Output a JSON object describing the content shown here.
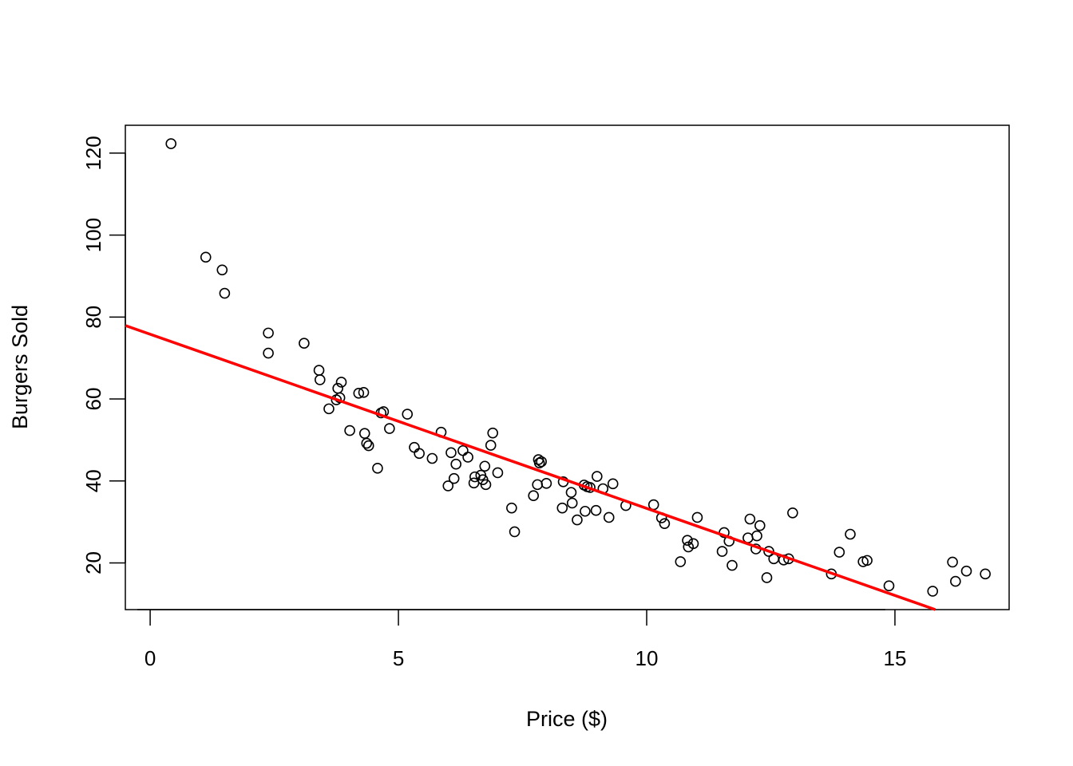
{
  "chart_data": {
    "type": "scatter",
    "title": "",
    "xlabel": "Price ($)",
    "ylabel": "Burgers Sold",
    "xlim": [
      -0.5,
      17.3
    ],
    "ylim": [
      8.6,
      126.8
    ],
    "x_ticks": [
      0,
      5,
      10,
      15
    ],
    "y_ticks": [
      20,
      40,
      60,
      80,
      100,
      120
    ],
    "grid": false,
    "legend": "none",
    "point_color": "#000000",
    "regression_line": {
      "color": "#ff0000",
      "intercept": 75.8,
      "slope": -4.25
    },
    "points": [
      [
        0.42,
        122.3
      ],
      [
        1.12,
        94.6
      ],
      [
        1.45,
        91.5
      ],
      [
        1.5,
        85.8
      ],
      [
        2.38,
        76.1
      ],
      [
        2.38,
        71.2
      ],
      [
        3.1,
        73.6
      ],
      [
        3.4,
        67.0
      ],
      [
        3.42,
        64.7
      ],
      [
        3.6,
        57.6
      ],
      [
        3.75,
        59.8
      ],
      [
        3.78,
        62.6
      ],
      [
        3.82,
        60.3
      ],
      [
        3.85,
        64.1
      ],
      [
        4.02,
        52.3
      ],
      [
        4.2,
        61.4
      ],
      [
        4.3,
        61.6
      ],
      [
        4.32,
        51.6
      ],
      [
        4.36,
        49.2
      ],
      [
        4.4,
        48.6
      ],
      [
        4.58,
        43.1
      ],
      [
        4.65,
        56.6
      ],
      [
        4.7,
        56.9
      ],
      [
        4.82,
        52.8
      ],
      [
        5.18,
        56.3
      ],
      [
        5.32,
        48.2
      ],
      [
        5.42,
        46.7
      ],
      [
        5.68,
        45.5
      ],
      [
        5.86,
        51.9
      ],
      [
        6.0,
        38.8
      ],
      [
        6.06,
        46.9
      ],
      [
        6.12,
        40.6
      ],
      [
        6.16,
        44.1
      ],
      [
        6.3,
        47.4
      ],
      [
        6.4,
        45.8
      ],
      [
        6.52,
        39.5
      ],
      [
        6.54,
        41.0
      ],
      [
        6.66,
        41.4
      ],
      [
        6.7,
        40.3
      ],
      [
        6.74,
        43.6
      ],
      [
        6.76,
        39.1
      ],
      [
        6.86,
        48.7
      ],
      [
        6.9,
        51.7
      ],
      [
        7.0,
        42.0
      ],
      [
        7.28,
        33.4
      ],
      [
        7.34,
        27.6
      ],
      [
        7.72,
        36.4
      ],
      [
        7.8,
        39.1
      ],
      [
        7.82,
        45.2
      ],
      [
        7.84,
        44.4
      ],
      [
        7.88,
        44.7
      ],
      [
        7.98,
        39.4
      ],
      [
        8.3,
        33.4
      ],
      [
        8.32,
        39.8
      ],
      [
        8.48,
        37.2
      ],
      [
        8.5,
        34.6
      ],
      [
        8.6,
        30.5
      ],
      [
        8.74,
        39.0
      ],
      [
        8.76,
        32.6
      ],
      [
        8.8,
        38.6
      ],
      [
        8.86,
        38.4
      ],
      [
        8.98,
        32.8
      ],
      [
        9.0,
        41.1
      ],
      [
        9.12,
        38.1
      ],
      [
        9.24,
        31.1
      ],
      [
        9.32,
        39.3
      ],
      [
        9.58,
        34.0
      ],
      [
        10.14,
        34.2
      ],
      [
        10.3,
        31.0
      ],
      [
        10.36,
        29.6
      ],
      [
        10.68,
        20.3
      ],
      [
        10.82,
        25.5
      ],
      [
        10.84,
        23.9
      ],
      [
        10.94,
        24.7
      ],
      [
        11.02,
        31.1
      ],
      [
        11.52,
        22.8
      ],
      [
        11.56,
        27.4
      ],
      [
        11.66,
        25.3
      ],
      [
        11.72,
        19.4
      ],
      [
        12.04,
        26.1
      ],
      [
        12.08,
        30.7
      ],
      [
        12.2,
        23.4
      ],
      [
        12.22,
        26.6
      ],
      [
        12.28,
        29.1
      ],
      [
        12.42,
        16.4
      ],
      [
        12.46,
        22.8
      ],
      [
        12.56,
        21.0
      ],
      [
        12.76,
        20.7
      ],
      [
        12.86,
        21.0
      ],
      [
        12.94,
        32.2
      ],
      [
        13.72,
        17.3
      ],
      [
        13.88,
        22.6
      ],
      [
        14.1,
        27.0
      ],
      [
        14.36,
        20.3
      ],
      [
        14.44,
        20.6
      ],
      [
        14.88,
        14.4
      ],
      [
        15.76,
        13.1
      ],
      [
        16.16,
        20.2
      ],
      [
        16.22,
        15.5
      ],
      [
        16.44,
        18.0
      ],
      [
        16.82,
        17.3
      ]
    ]
  }
}
